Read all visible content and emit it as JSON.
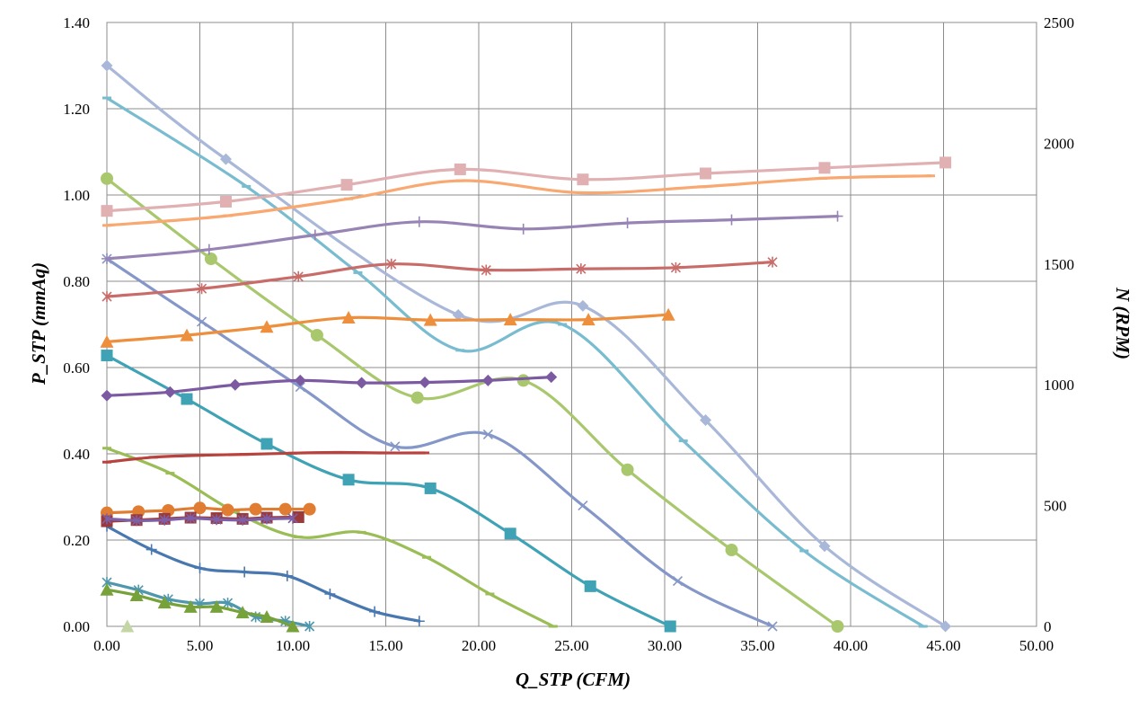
{
  "chart_data": {
    "type": "line",
    "xlabel": "Q_STP (CFM)",
    "ylabel": "P_STP (mmAq)",
    "y2label": "N (RPM)",
    "xlim": [
      0,
      50
    ],
    "ylim": [
      0,
      1.4
    ],
    "y2lim": [
      0,
      2500
    ],
    "x_ticks": [
      "0.00",
      "5.00",
      "10.00",
      "15.00",
      "20.00",
      "25.00",
      "30.00",
      "35.00",
      "40.00",
      "45.00",
      "50.00"
    ],
    "y_ticks": [
      "0.00",
      "0.20",
      "0.40",
      "0.60",
      "0.80",
      "1.00",
      "1.20",
      "1.40"
    ],
    "y2_ticks": [
      "0",
      "500",
      "1000",
      "1500",
      "2000",
      "2500"
    ],
    "grid": true,
    "legend": "none",
    "series": [
      {
        "axis": "left",
        "color": "#a9b8d8",
        "marker": "diamond",
        "x": [
          0,
          6.4,
          18.9,
          25.6,
          32.2,
          38.6,
          45.1
        ],
        "y": [
          1.3,
          1.083,
          0.722,
          0.743,
          0.478,
          0.186,
          0.0
        ]
      },
      {
        "axis": "left",
        "color": "#79bcd0",
        "marker": "dash",
        "x": [
          0,
          7.5,
          13.5,
          19.0,
          24.5,
          31.0,
          37.5,
          43.9
        ],
        "y": [
          1.225,
          1.02,
          0.82,
          0.64,
          0.7,
          0.43,
          0.175,
          0.0
        ]
      },
      {
        "axis": "left",
        "color": "#a9c86e",
        "marker": "circle",
        "x": [
          0,
          5.6,
          11.3,
          16.7,
          22.4,
          28.0,
          33.6,
          39.3
        ],
        "y": [
          1.038,
          0.852,
          0.675,
          0.53,
          0.57,
          0.363,
          0.177,
          0.0
        ]
      },
      {
        "axis": "left",
        "color": "#8497c8",
        "marker": "x",
        "x": [
          0,
          5.1,
          10.4,
          15.5,
          20.5,
          25.6,
          30.7,
          35.8
        ],
        "y": [
          0.852,
          0.706,
          0.555,
          0.417,
          0.445,
          0.28,
          0.105,
          0.0
        ]
      },
      {
        "axis": "left",
        "color": "#3fa2b5",
        "marker": "square",
        "x": [
          0,
          4.3,
          8.6,
          13.0,
          17.4,
          21.7,
          26.0,
          30.3
        ],
        "y": [
          0.628,
          0.527,
          0.423,
          0.34,
          0.32,
          0.215,
          0.093,
          0.0
        ]
      },
      {
        "axis": "left",
        "color": "#9abd55",
        "marker": "dash",
        "x": [
          0,
          3.4,
          6.9,
          10.3,
          13.7,
          17.2,
          20.6,
          24.0
        ],
        "y": [
          0.413,
          0.355,
          0.265,
          0.207,
          0.218,
          0.16,
          0.075,
          0.0
        ]
      },
      {
        "axis": "left",
        "color": "#4978b0",
        "marker": "plus",
        "x": [
          0,
          2.4,
          5.0,
          7.4,
          9.7,
          12.0,
          14.4,
          16.8
        ],
        "y": [
          0.232,
          0.178,
          0.135,
          0.126,
          0.117,
          0.075,
          0.034,
          0.012
        ]
      },
      {
        "axis": "left",
        "color": "#4f97ac",
        "marker": "asterisk",
        "x": [
          0,
          1.7,
          3.3,
          5.0,
          6.5,
          8.0,
          9.6,
          10.9
        ],
        "y": [
          0.102,
          0.084,
          0.063,
          0.053,
          0.054,
          0.022,
          0.012,
          0.0
        ]
      },
      {
        "axis": "left",
        "color": "#77a23a",
        "marker": "triangle",
        "x": [
          0,
          1.6,
          3.1,
          4.5,
          5.9,
          7.3,
          8.6,
          10.0
        ],
        "y": [
          0.085,
          0.072,
          0.055,
          0.045,
          0.045,
          0.032,
          0.022,
          0.0
        ]
      },
      {
        "axis": "left",
        "color": "#c3d6a3",
        "marker": "triangle",
        "x": [
          1.1
        ],
        "y": [
          0.0
        ]
      },
      {
        "axis": "right",
        "color": "#e0b0b2",
        "marker": "square",
        "x": [
          0,
          6.4,
          12.9,
          19.0,
          25.6,
          32.2,
          38.6,
          45.1
        ],
        "y": [
          1720,
          1758,
          1828,
          1892,
          1850,
          1875,
          1898,
          1920
        ]
      },
      {
        "axis": "right",
        "color": "#f8a870",
        "marker": "dash",
        "x": [
          0,
          6.5,
          13.0,
          19.0,
          25.5,
          32.0,
          38.5,
          44.3
        ],
        "y": [
          1660,
          1700,
          1770,
          1845,
          1795,
          1820,
          1855,
          1865
        ]
      },
      {
        "axis": "right",
        "color": "#9784b5",
        "marker": "plus",
        "x": [
          0,
          5.5,
          11.2,
          16.8,
          22.4,
          28.0,
          33.6,
          39.3
        ],
        "y": [
          1522,
          1560,
          1620,
          1675,
          1645,
          1670,
          1683,
          1698
        ]
      },
      {
        "axis": "right",
        "color": "#c86c6a",
        "marker": "asterisk",
        "x": [
          0,
          5.1,
          10.3,
          15.3,
          20.4,
          25.5,
          30.6,
          35.8
        ],
        "y": [
          1365,
          1398,
          1448,
          1500,
          1475,
          1480,
          1485,
          1508
        ]
      },
      {
        "axis": "right",
        "color": "#ed8f3c",
        "marker": "triangle",
        "x": [
          0,
          4.3,
          8.6,
          13.0,
          17.4,
          21.7,
          25.9,
          30.2
        ],
        "y": [
          1178,
          1205,
          1240,
          1278,
          1268,
          1270,
          1270,
          1290
        ]
      },
      {
        "axis": "right",
        "color": "#7c5aa2",
        "marker": "diamond",
        "x": [
          0,
          3.4,
          6.9,
          10.4,
          13.7,
          17.1,
          20.5,
          23.9
        ],
        "y": [
          955,
          970,
          1000,
          1018,
          1008,
          1010,
          1018,
          1032
        ]
      },
      {
        "axis": "right",
        "color": "#b8423e",
        "marker": "dash",
        "x": [
          0,
          2.5,
          5.0,
          7.4,
          10.0,
          12.4,
          14.8,
          17.1
        ],
        "y": [
          680,
          700,
          708,
          712,
          717,
          720,
          718,
          718
        ]
      },
      {
        "axis": "right",
        "color": "#e07d33",
        "marker": "circle",
        "x": [
          0,
          1.7,
          3.3,
          5.0,
          6.5,
          8.0,
          9.6,
          10.9
        ],
        "y": [
          470,
          475,
          480,
          490,
          482,
          485,
          485,
          485
        ]
      },
      {
        "axis": "right",
        "color": "#9b3a3a",
        "marker": "square",
        "x": [
          0,
          1.6,
          3.1,
          4.5,
          5.9,
          7.3,
          8.6,
          10.3
        ],
        "y": [
          435,
          440,
          445,
          450,
          448,
          445,
          450,
          452
        ]
      },
      {
        "axis": "right",
        "color": "#7d60a8",
        "marker": "asterisk",
        "x": [
          0,
          1.6,
          3.1,
          4.5,
          5.9,
          7.3,
          8.6,
          10.0
        ],
        "y": [
          445,
          438,
          440,
          448,
          442,
          440,
          445,
          447
        ]
      }
    ]
  }
}
